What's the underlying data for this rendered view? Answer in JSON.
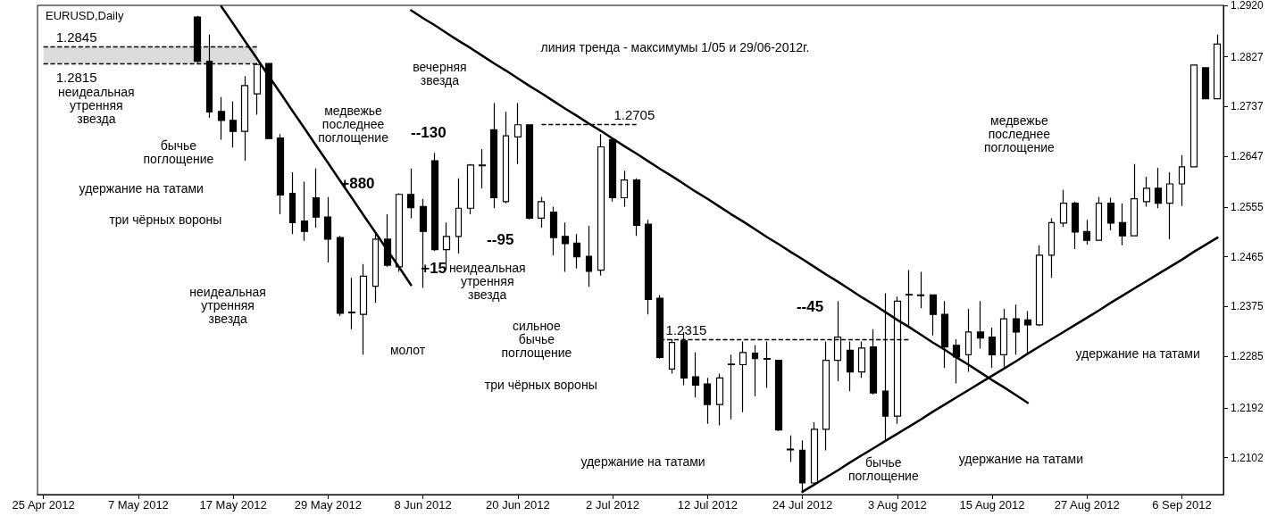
{
  "chart_data": {
    "type": "candlestick",
    "title": "EURUSD,Daily",
    "color": "#000000",
    "categories": [
      "25 Apr 2012",
      null,
      null,
      null,
      null,
      null,
      null,
      null,
      "7 May 2012",
      null,
      null,
      null,
      null,
      null,
      null,
      null,
      "17 May 2012",
      null,
      null,
      null,
      null,
      null,
      null,
      null,
      "29 May 2012",
      null,
      null,
      null,
      null,
      null,
      null,
      null,
      "8 Jun 2012",
      null,
      null,
      null,
      null,
      null,
      null,
      null,
      "20 Jun 2012",
      null,
      null,
      null,
      null,
      null,
      null,
      null,
      "2 Jul 2012",
      null,
      null,
      null,
      null,
      null,
      null,
      null,
      "12 Jul 2012",
      null,
      null,
      null,
      null,
      null,
      null,
      null,
      "24 Jul 2012",
      null,
      null,
      null,
      null,
      null,
      null,
      null,
      "3 Aug 2012",
      null,
      null,
      null,
      null,
      null,
      null,
      null,
      "15 Aug 2012",
      null,
      null,
      null,
      null,
      null,
      null,
      null,
      "27 Aug 2012",
      null,
      null,
      null,
      null,
      null,
      null,
      null,
      "6 Sep 2012",
      null,
      null,
      null
    ],
    "ohlc": [
      null,
      null,
      null,
      null,
      null,
      null,
      null,
      null,
      null,
      null,
      null,
      null,
      null,
      [
        1.2899,
        1.2901,
        1.2816,
        1.2819
      ],
      [
        1.2819,
        1.2867,
        1.2717,
        1.2727
      ],
      [
        1.2728,
        1.2754,
        1.2677,
        1.2712
      ],
      [
        1.2712,
        1.2746,
        1.2663,
        1.2692
      ],
      [
        1.2692,
        1.2792,
        1.2639,
        1.2775
      ],
      [
        1.276,
        1.2816,
        1.2722,
        1.2813
      ],
      [
        1.2815,
        1.2816,
        1.2679,
        1.2679
      ],
      [
        1.268,
        1.2687,
        1.2542,
        1.2577
      ],
      [
        1.258,
        1.2618,
        1.2506,
        1.2527
      ],
      [
        1.253,
        1.2601,
        1.2494,
        1.2511
      ],
      [
        1.2572,
        1.2625,
        1.2518,
        1.2537
      ],
      [
        1.2537,
        1.2573,
        1.2455,
        1.2497
      ],
      [
        1.25,
        1.2503,
        1.2358,
        1.2363
      ],
      [
        1.2365,
        1.2427,
        1.2334,
        1.2364
      ],
      [
        1.2361,
        1.2452,
        1.2288,
        1.243
      ],
      [
        1.2412,
        1.2506,
        1.2382,
        1.2497
      ],
      [
        1.2497,
        1.2542,
        1.2447,
        1.245
      ],
      [
        1.2447,
        1.258,
        1.2438,
        1.2578
      ],
      [
        1.2578,
        1.2625,
        1.2535,
        1.2554
      ],
      [
        1.2556,
        1.257,
        1.2409,
        1.2511
      ],
      [
        1.2639,
        1.2653,
        1.2476,
        1.2478
      ],
      [
        1.2478,
        1.2527,
        1.2441,
        1.2502
      ],
      [
        1.2502,
        1.2607,
        1.2471,
        1.2553
      ],
      [
        1.2553,
        1.2633,
        1.2542,
        1.2631
      ],
      [
        1.2631,
        1.266,
        1.2589,
        1.263
      ],
      [
        1.2695,
        1.2743,
        1.2553,
        1.2572
      ],
      [
        1.2565,
        1.2728,
        1.2562,
        1.2684
      ],
      [
        1.2682,
        1.2743,
        1.2633,
        1.2704
      ],
      [
        1.2704,
        1.2705,
        1.2533,
        1.2535
      ],
      [
        1.2535,
        1.2573,
        1.2518,
        1.2565
      ],
      [
        1.2546,
        1.2556,
        1.2468,
        1.25
      ],
      [
        1.2502,
        1.2527,
        1.2438,
        1.2489
      ],
      [
        1.249,
        1.2506,
        1.2444,
        1.2465
      ],
      [
        1.2466,
        1.2521,
        1.2411,
        1.2439
      ],
      [
        1.2441,
        1.2687,
        1.2431,
        1.2664
      ],
      [
        1.2677,
        1.268,
        1.2565,
        1.2572
      ],
      [
        1.2572,
        1.2621,
        1.2556,
        1.2604
      ],
      [
        1.2604,
        1.2607,
        1.2503,
        1.2522
      ],
      [
        1.2524,
        1.2532,
        1.2361,
        1.2388
      ],
      [
        1.239,
        1.2396,
        1.2281,
        1.2283
      ],
      [
        1.2262,
        1.2316,
        1.2254,
        1.231
      ],
      [
        1.2313,
        1.2329,
        1.2233,
        1.2246
      ],
      [
        1.2248,
        1.2292,
        1.2211,
        1.2233
      ],
      [
        1.2235,
        1.2246,
        1.2163,
        1.2198
      ],
      [
        1.2198,
        1.2254,
        1.216,
        1.2246
      ],
      [
        1.227,
        1.2288,
        1.2171,
        1.2271
      ],
      [
        1.227,
        1.2312,
        1.2184,
        1.2292
      ],
      [
        1.2291,
        1.2305,
        1.2213,
        1.2281
      ],
      [
        1.2281,
        1.2312,
        1.2228,
        1.228
      ],
      [
        1.2278,
        1.2279,
        1.215,
        1.2152
      ],
      [
        1.2117,
        1.2142,
        1.2094,
        1.2116
      ],
      [
        1.2115,
        1.2133,
        1.2038,
        1.2056
      ],
      [
        1.2056,
        1.2166,
        1.2054,
        1.2153
      ],
      [
        1.2153,
        1.2312,
        1.2115,
        1.2278
      ],
      [
        1.2278,
        1.2385,
        1.224,
        1.232
      ],
      [
        1.2296,
        1.2312,
        1.2222,
        1.2257
      ],
      [
        1.2257,
        1.2312,
        1.2246,
        1.23
      ],
      [
        1.2302,
        1.2334,
        1.2216,
        1.2219
      ],
      [
        1.2222,
        1.2399,
        1.2131,
        1.2177
      ],
      [
        1.2177,
        1.2393,
        1.2163,
        1.2385
      ],
      [
        1.2396,
        1.2441,
        1.234,
        1.2397
      ],
      [
        1.2396,
        1.2438,
        1.2372,
        1.2395
      ],
      [
        1.2396,
        1.2397,
        1.2323,
        1.2361
      ],
      [
        1.2361,
        1.2385,
        1.2264,
        1.2302
      ],
      [
        1.2305,
        1.2316,
        1.2236,
        1.2284
      ],
      [
        1.2288,
        1.2371,
        1.2257,
        1.2329
      ],
      [
        1.2329,
        1.2385,
        1.2299,
        1.2318
      ],
      [
        1.232,
        1.2337,
        1.2264,
        1.2288
      ],
      [
        1.2288,
        1.2371,
        1.2264,
        1.2353
      ],
      [
        1.2353,
        1.2379,
        1.2288,
        1.2329
      ],
      [
        1.2351,
        1.2367,
        1.2291,
        1.2342
      ],
      [
        1.2342,
        1.2486,
        1.234,
        1.2468
      ],
      [
        1.2468,
        1.2535,
        1.2427,
        1.2527
      ],
      [
        1.2526,
        1.2586,
        1.2519,
        1.2562
      ],
      [
        1.2562,
        1.2565,
        1.2479,
        1.251
      ],
      [
        1.2511,
        1.2532,
        1.2487,
        1.2495
      ],
      [
        1.2495,
        1.2573,
        1.2494,
        1.2562
      ],
      [
        1.2562,
        1.2572,
        1.2513,
        1.2526
      ],
      [
        1.2527,
        1.2562,
        1.2486,
        1.2503
      ],
      [
        1.2503,
        1.2633,
        1.2502,
        1.257
      ],
      [
        1.2565,
        1.261,
        1.2556,
        1.2589
      ],
      [
        1.2589,
        1.2626,
        1.2553,
        1.2562
      ],
      [
        1.2562,
        1.2618,
        1.2497,
        1.2597
      ],
      [
        1.2597,
        1.2649,
        1.2557,
        1.2628
      ],
      [
        1.2628,
        1.2813,
        1.2627,
        1.2812
      ],
      [
        1.2807,
        1.2808,
        1.275,
        1.2751
      ],
      [
        1.2751,
        1.2867,
        1.275,
        1.285
      ]
    ],
    "series": [
      {
        "type": "line",
        "color": "#000000",
        "marker": "none",
        "values": [
          null,
          null,
          null,
          null,
          null,
          null,
          null,
          null,
          null,
          null,
          null,
          null,
          null,
          null,
          null,
          1.2918,
          1.2887,
          1.2855,
          1.2824,
          1.2792,
          1.2761,
          1.2729,
          1.2698,
          1.2666,
          1.2635,
          1.2603,
          1.2572,
          1.254,
          1.2509,
          1.2477,
          1.2446,
          1.2414,
          null,
          null,
          null,
          null,
          null,
          null,
          null,
          null,
          null,
          null,
          null,
          null,
          null,
          null,
          null,
          null,
          null,
          null,
          null,
          null,
          null,
          null,
          null,
          null,
          null,
          null,
          null,
          null,
          null,
          null,
          null,
          null,
          null,
          null,
          null,
          null,
          null,
          null,
          null,
          null,
          null,
          null,
          null,
          null,
          null,
          null,
          null,
          null,
          null,
          null,
          null,
          null,
          null,
          null,
          null,
          null,
          null,
          null,
          null,
          null,
          null,
          null,
          null,
          null,
          null,
          null,
          null,
          null
        ]
      },
      {
        "type": "line",
        "color": "#000000",
        "marker": "none",
        "values": [
          null,
          null,
          null,
          null,
          null,
          null,
          null,
          null,
          null,
          null,
          null,
          null,
          null,
          null,
          null,
          null,
          null,
          null,
          null,
          null,
          null,
          null,
          null,
          null,
          null,
          null,
          null,
          null,
          null,
          null,
          null,
          1.2911,
          1.2897,
          1.2884,
          1.287,
          1.2856,
          1.2843,
          1.2829,
          1.2815,
          1.2802,
          1.2788,
          1.2774,
          1.2761,
          1.2747,
          1.2733,
          1.272,
          1.2706,
          1.2693,
          1.2679,
          1.2665,
          1.2652,
          1.2638,
          1.2624,
          1.2611,
          1.2597,
          1.2583,
          1.257,
          1.2556,
          1.2542,
          1.2529,
          1.2515,
          1.2501,
          1.2488,
          1.2474,
          1.2461,
          1.2447,
          1.2433,
          1.242,
          1.2406,
          1.2392,
          1.2379,
          1.2365,
          1.2351,
          1.2338,
          1.2324,
          1.231,
          1.2297,
          1.2283,
          1.227,
          1.2256,
          1.2242,
          1.2229,
          1.2215,
          1.2201,
          null,
          null,
          null,
          null,
          null,
          null,
          null,
          null,
          null,
          null,
          null,
          null,
          null,
          null,
          null,
          null
        ]
      },
      {
        "type": "line",
        "color": "#000000",
        "marker": "none",
        "values": [
          null,
          null,
          null,
          null,
          null,
          null,
          null,
          null,
          null,
          null,
          null,
          null,
          null,
          null,
          null,
          null,
          null,
          null,
          null,
          null,
          null,
          null,
          null,
          null,
          null,
          null,
          null,
          null,
          null,
          null,
          null,
          null,
          null,
          null,
          null,
          null,
          null,
          null,
          null,
          null,
          null,
          null,
          null,
          null,
          null,
          null,
          null,
          null,
          null,
          null,
          null,
          null,
          null,
          null,
          null,
          null,
          null,
          null,
          null,
          null,
          null,
          null,
          null,
          null,
          1.204,
          1.2053,
          1.2066,
          1.2079,
          1.2093,
          1.2106,
          1.2119,
          1.2132,
          1.2145,
          1.2158,
          1.2171,
          1.2185,
          1.2198,
          1.2211,
          1.2224,
          1.2237,
          1.225,
          1.2263,
          1.2276,
          1.229,
          1.2303,
          1.2316,
          1.2329,
          1.2342,
          1.2355,
          1.2368,
          1.2382,
          1.2395,
          1.2408,
          1.2421,
          1.2434,
          1.2447,
          1.246,
          1.2474,
          1.2487,
          1.25
        ]
      }
    ],
    "ylim": [
      1.2035,
      1.292
    ],
    "yticks": [
      1.2102,
      1.2192,
      1.2285,
      1.2375,
      1.2465,
      1.2555,
      1.2647,
      1.2737,
      1.2827,
      {
        "value": 1.292,
        "label": "1.2920"
      }
    ],
    "grid": false,
    "ref_lines": [
      {
        "axis": "y",
        "value": 1.2845,
        "label": "1.2845",
        "color": "#000000",
        "line_style": "dashed"
      },
      {
        "axis": "y",
        "value": 1.2815,
        "label": "1.2815",
        "color": "#000000",
        "line_style": "dashed"
      },
      {
        "axis": "y",
        "value": 1.2705,
        "label": "1.2705",
        "color": "#000000",
        "line_style": "dashed"
      },
      {
        "axis": "y",
        "value": 1.2315,
        "label": "1.2315",
        "color": "#000000",
        "line_style": "dashed"
      }
    ],
    "bands": [
      {
        "axis": "y",
        "from": 1.2815,
        "to": 1.2845,
        "color": "#dcdcdc"
      }
    ],
    "annotations": [
      "неидеальная\nутренняя\nзвезда",
      "бычье\nпоглощение",
      "удержание на татами",
      "три чёрных вороны",
      "неидеальная\nутренняя\nзвезда",
      "молот",
      "медвежье\nпоследнее\nпоглощение",
      "+880",
      "--130",
      "+15",
      "вечерняя\nзвезда",
      "неидеальная\nутренняя\nзвезда",
      "--95",
      "линия тренда - максимумы 1/05 и 29/06-2012г.",
      "сильное\nбычье\nпоглощение",
      "три чёрных вороны",
      "удержание на татами",
      "--45",
      "бычье\nпоглощение",
      "удержание на татами",
      "медвежье\nпоследнее\nпоглощение",
      "удержание на татами"
    ]
  }
}
